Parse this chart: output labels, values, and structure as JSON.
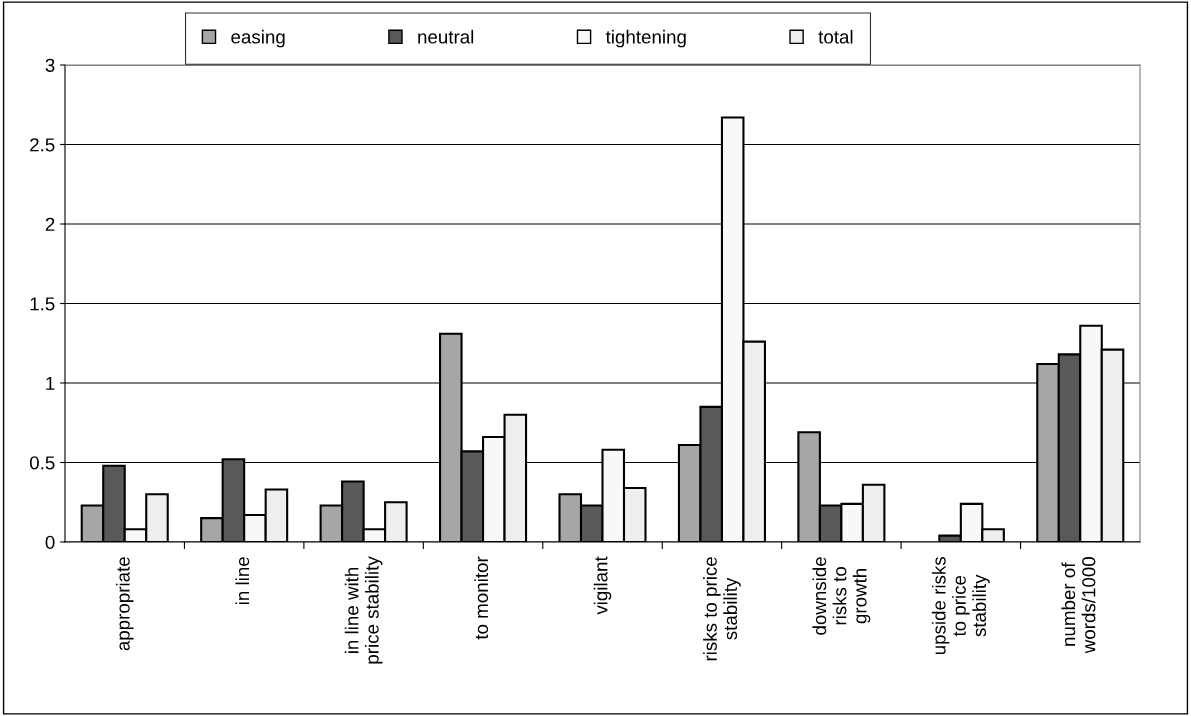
{
  "chart_data": {
    "type": "bar",
    "categories": [
      "appropriate",
      "in line",
      "in line with\nprice stability",
      "to monitor",
      "vigilant",
      "risks to price\nstability",
      "downside\nrisks to\ngrowth",
      "upside risks\nto price\nstability",
      "number of\nwords/1000"
    ],
    "series": [
      {
        "name": "easing",
        "color": "#a6a6a6",
        "values": [
          0.23,
          0.15,
          0.23,
          1.31,
          0.3,
          0.61,
          0.69,
          null,
          1.12
        ]
      },
      {
        "name": "neutral",
        "color": "#595959",
        "values": [
          0.48,
          0.52,
          0.38,
          0.57,
          0.23,
          0.85,
          0.23,
          0.04,
          1.18
        ]
      },
      {
        "name": "tightening",
        "color": "#f8f8f8",
        "values": [
          0.08,
          0.17,
          0.08,
          0.66,
          0.58,
          2.67,
          0.24,
          0.24,
          1.36
        ]
      },
      {
        "name": "total",
        "color": "#eeeeee",
        "values": [
          0.3,
          0.33,
          0.25,
          0.8,
          0.34,
          1.26,
          0.36,
          0.08,
          1.21
        ]
      }
    ],
    "ylim": [
      0,
      3
    ],
    "yticks": [
      0,
      0.5,
      1,
      1.5,
      2,
      2.5,
      3
    ],
    "grid": "y",
    "legend": "top"
  }
}
